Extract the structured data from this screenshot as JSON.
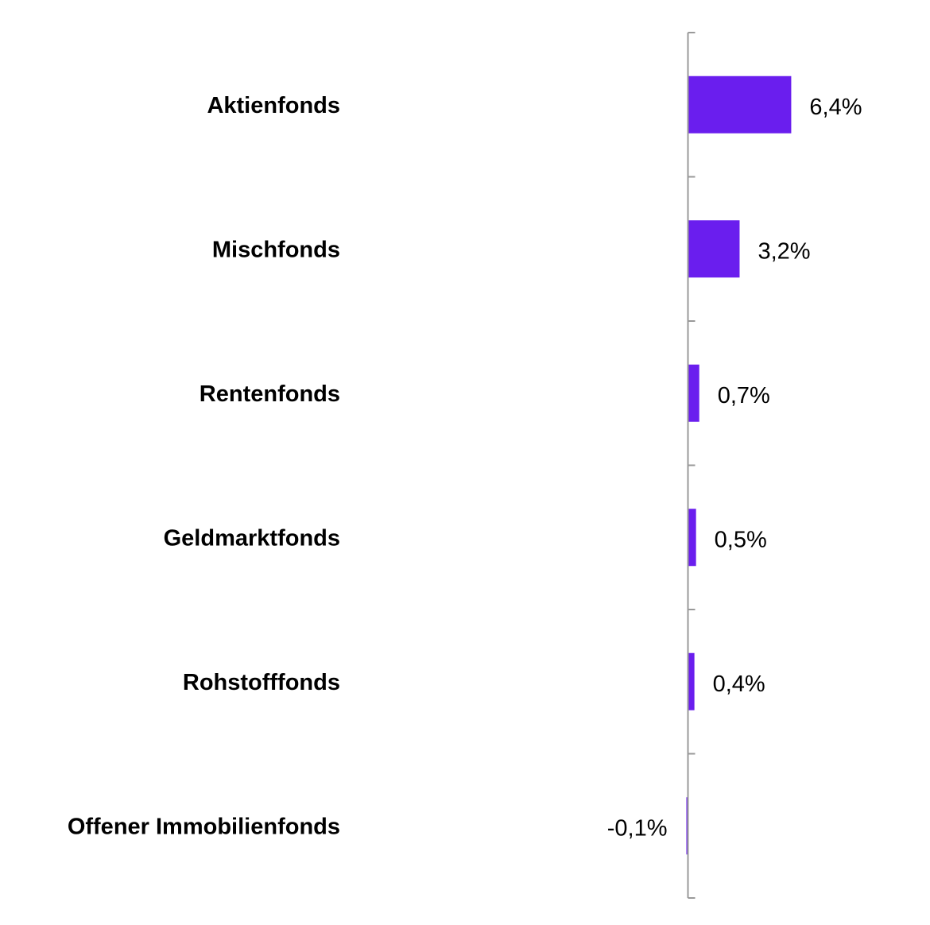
{
  "chart_data": {
    "type": "bar",
    "orientation": "horizontal",
    "title": "",
    "xlabel": "",
    "ylabel": "",
    "categories": [
      "Aktienfonds",
      "Mischfonds",
      "Rentenfonds",
      "Geldmarktfonds",
      "Rohstofffonds",
      "Offener Immobilienfonds"
    ],
    "values": [
      6.4,
      3.2,
      0.7,
      0.5,
      0.4,
      -0.1
    ],
    "value_labels": [
      "6,4%",
      "3,2%",
      "0,7%",
      "0,5%",
      "0,4%",
      "-0,1%"
    ],
    "unit": "%",
    "grid": false,
    "legend": "none",
    "colors": {
      "bar": "#6a1eee",
      "axis": "#999999"
    }
  }
}
